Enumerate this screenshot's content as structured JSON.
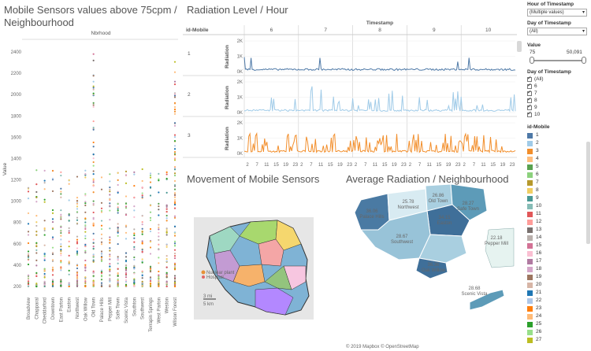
{
  "scatter": {
    "title_line1": "Mobile Sensors values above 75cpm /",
    "title_line2": "Neighbourhood",
    "column_header": "Nbrhood",
    "y_label": "Value",
    "y_ticks": [
      "2400",
      "2200",
      "2000",
      "1800",
      "1600",
      "1400",
      "1200",
      "1000",
      "800",
      "600",
      "400",
      "200"
    ],
    "neighbourhoods": [
      "Broadview",
      "Chapparal",
      "Cheddarford",
      "Downtown",
      "East Parton",
      "Easton",
      "Northwest",
      "Oak Willow",
      "Old Town",
      "Palace Hills",
      "Pepper Mill",
      "Safe Town",
      "Scenic Vista",
      "Southton",
      "Southwest",
      "Terrapin Springs",
      "West Parton",
      "Weston",
      "Wilson Forest"
    ]
  },
  "radiation": {
    "title": "Radiation Level / Hour",
    "timestamp_label": "Timestamp",
    "id_label": "id-Mobile",
    "days": [
      "6",
      "7",
      "8",
      "9",
      "10"
    ],
    "rows": [
      {
        "id": "1",
        "axis": "Radiation",
        "color": "#4e79a7"
      },
      {
        "id": "2",
        "axis": "Radiation",
        "color": "#a0cbe8"
      },
      {
        "id": "3",
        "axis": "Radiation",
        "color": "#f28e2b"
      }
    ],
    "y_ticks": [
      "2K",
      "1K",
      "0K"
    ],
    "x_ticks": [
      "2",
      "7",
      "11",
      "15",
      "19",
      "23"
    ]
  },
  "movement": {
    "title": "Movement of Mobile Sensors",
    "legend_nuclear": "Nuclear plant",
    "legend_hospital": "Hospital",
    "scale_mi": "3 mi",
    "scale_km": "5 km"
  },
  "avgmap": {
    "title": "Average Radiation  / Neighbourhood",
    "attribution": "© 2019 Mapbox  © OpenStreetMap",
    "regions": [
      {
        "value": "25.78",
        "name": "Northwest"
      },
      {
        "value": "26.86",
        "name": "Old Town"
      },
      {
        "value": "28.27",
        "name": "Safe Town"
      },
      {
        "value": "36.06",
        "name": "Palace Hills"
      },
      {
        "value": "34.15",
        "name": "Easton"
      },
      {
        "value": "28.67",
        "name": "Southwest"
      },
      {
        "value": "22.18",
        "name": "Pepper Mill"
      },
      {
        "value": "36.36",
        "name": "Oak Willow"
      },
      {
        "value": "28.68",
        "name": "Scenic Vista"
      }
    ]
  },
  "sidebar": {
    "hour_label": "Hour of Timestamp",
    "hour_value": "(Multiple values)",
    "day_label": "Day of Timestamp",
    "day_value": "(All)",
    "value_label": "Value",
    "value_min": "75",
    "value_max": "50,091",
    "day_list_label": "Day of Timestamp",
    "day_items": [
      "(All)",
      "6",
      "7",
      "8",
      "9",
      "10"
    ],
    "legend_label": "id-Mobile",
    "legend_items": [
      {
        "id": "1",
        "color": "#4e79a7"
      },
      {
        "id": "2",
        "color": "#a0cbe8"
      },
      {
        "id": "3",
        "color": "#f28e2b"
      },
      {
        "id": "4",
        "color": "#ffbe7d"
      },
      {
        "id": "5",
        "color": "#59a14f"
      },
      {
        "id": "6",
        "color": "#8cd17d"
      },
      {
        "id": "7",
        "color": "#b6992d"
      },
      {
        "id": "8",
        "color": "#f1ce63"
      },
      {
        "id": "9",
        "color": "#499894"
      },
      {
        "id": "10",
        "color": "#86bcb6"
      },
      {
        "id": "11",
        "color": "#e15759"
      },
      {
        "id": "12",
        "color": "#ff9d9a"
      },
      {
        "id": "13",
        "color": "#79706e"
      },
      {
        "id": "14",
        "color": "#bab0ac"
      },
      {
        "id": "15",
        "color": "#d37295"
      },
      {
        "id": "16",
        "color": "#fabfd2"
      },
      {
        "id": "17",
        "color": "#b07aa1"
      },
      {
        "id": "18",
        "color": "#d4a6c8"
      },
      {
        "id": "19",
        "color": "#9d7660"
      },
      {
        "id": "20",
        "color": "#d7b5a6"
      },
      {
        "id": "21",
        "color": "#1f77b4"
      },
      {
        "id": "22",
        "color": "#aec7e8"
      },
      {
        "id": "23",
        "color": "#ff7f0e"
      },
      {
        "id": "24",
        "color": "#ffbb78"
      },
      {
        "id": "25",
        "color": "#2ca02c"
      },
      {
        "id": "26",
        "color": "#98df8a"
      },
      {
        "id": "27",
        "color": "#bcbd22"
      }
    ]
  }
}
